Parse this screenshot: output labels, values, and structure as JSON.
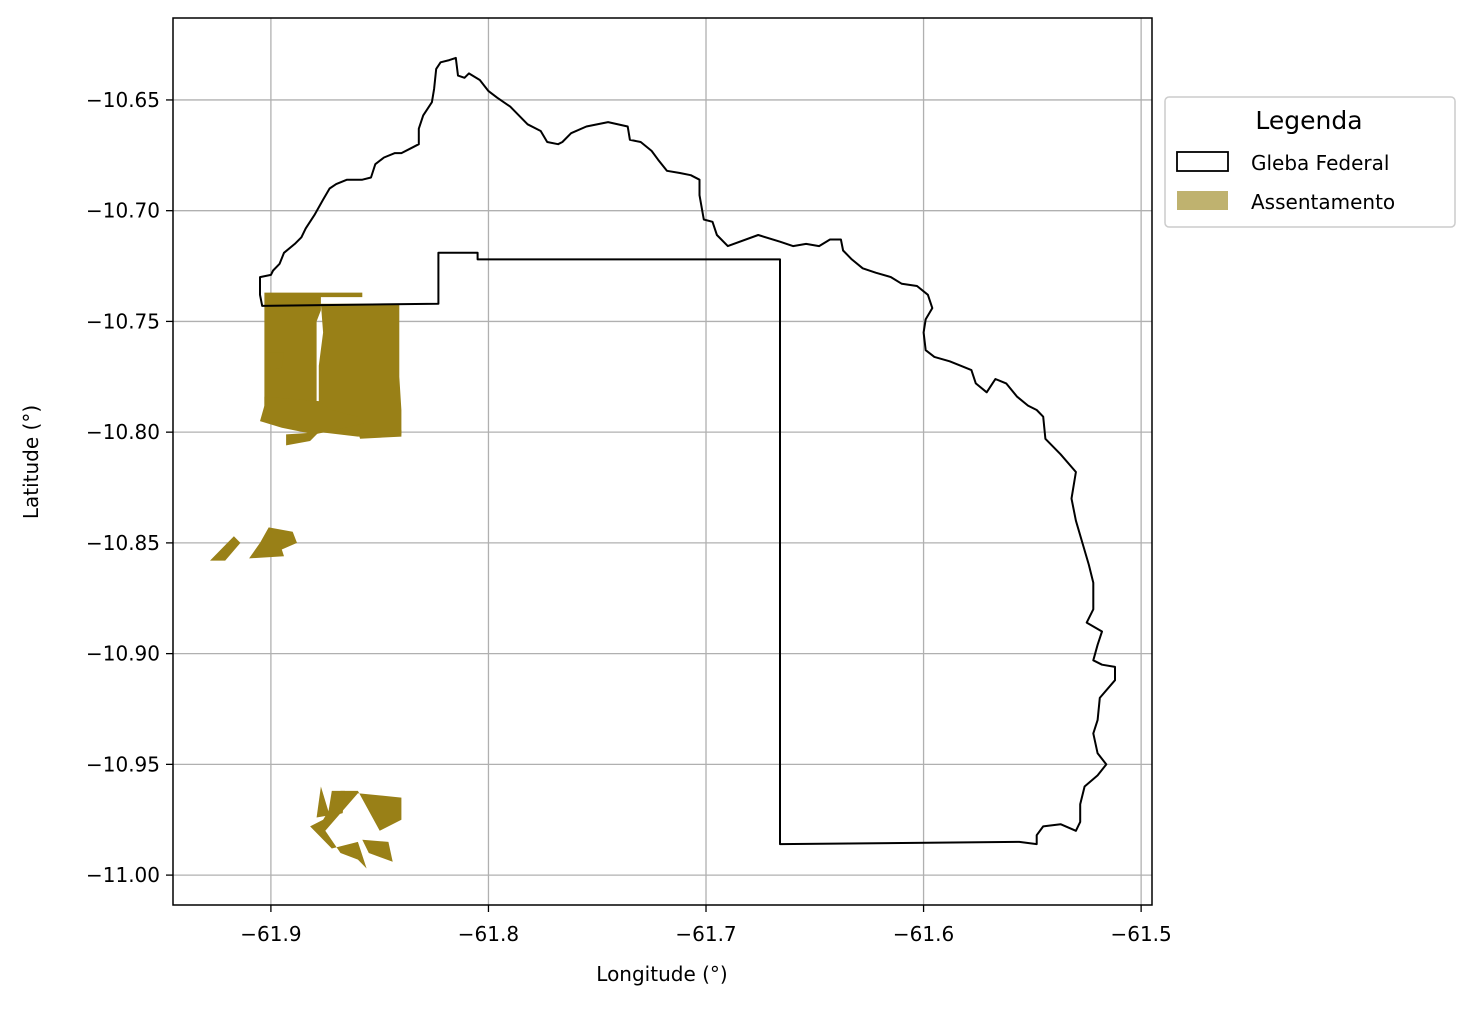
{
  "chart_data": {
    "type": "map",
    "title": "",
    "xlabel": "Longitude (°)",
    "ylabel": "Latitude (°)",
    "xlim": [
      -61.945,
      -61.495
    ],
    "ylim": [
      -11.0135,
      -10.613
    ],
    "grid": true,
    "x_ticks": [
      -61.9,
      -61.8,
      -61.7,
      -61.6,
      -61.5
    ],
    "x_tick_labels": [
      "−61.9",
      "−61.8",
      "−61.7",
      "−61.6",
      "−61.5"
    ],
    "y_ticks": [
      -10.65,
      -10.7,
      -10.75,
      -10.8,
      -10.85,
      -10.9,
      -10.95,
      -11.0
    ],
    "y_tick_labels": [
      "−10.65",
      "−10.70",
      "−10.75",
      "−10.80",
      "−10.85",
      "−10.90",
      "−10.95",
      "−11.00"
    ],
    "legend": {
      "title": "Legenda",
      "placement": "outside-right-top",
      "entries": [
        {
          "label": "Gleba Federal",
          "style": "outline",
          "edge_color": "#000000",
          "fill": "none"
        },
        {
          "label": "Assentamento",
          "style": "fill",
          "fill": "#bfb26f"
        }
      ]
    },
    "layers": [
      {
        "name": "Gleba Federal",
        "style": "outline",
        "color": "#000000",
        "polygons": [
          [
            [
              -61.904,
              -10.743
            ],
            [
              -61.823,
              -10.742
            ],
            [
              -61.823,
              -10.719
            ],
            [
              -61.805,
              -10.719
            ],
            [
              -61.805,
              -10.722
            ],
            [
              -61.666,
              -10.722
            ],
            [
              -61.666,
              -10.986
            ],
            [
              -61.556,
              -10.985
            ],
            [
              -61.548,
              -10.986
            ],
            [
              -61.548,
              -10.982
            ],
            [
              -61.545,
              -10.978
            ],
            [
              -61.537,
              -10.977
            ],
            [
              -61.53,
              -10.98
            ],
            [
              -61.528,
              -10.976
            ],
            [
              -61.528,
              -10.968
            ],
            [
              -61.526,
              -10.96
            ],
            [
              -61.52,
              -10.955
            ],
            [
              -61.516,
              -10.95
            ],
            [
              -61.52,
              -10.945
            ],
            [
              -61.522,
              -10.936
            ],
            [
              -61.52,
              -10.93
            ],
            [
              -61.519,
              -10.92
            ],
            [
              -61.512,
              -10.912
            ],
            [
              -61.512,
              -10.906
            ],
            [
              -61.518,
              -10.905
            ],
            [
              -61.522,
              -10.903
            ],
            [
              -61.52,
              -10.896
            ],
            [
              -61.518,
              -10.89
            ],
            [
              -61.525,
              -10.886
            ],
            [
              -61.522,
              -10.88
            ],
            [
              -61.522,
              -10.868
            ],
            [
              -61.524,
              -10.86
            ],
            [
              -61.527,
              -10.85
            ],
            [
              -61.53,
              -10.84
            ],
            [
              -61.532,
              -10.83
            ],
            [
              -61.53,
              -10.818
            ],
            [
              -61.537,
              -10.81
            ],
            [
              -61.544,
              -10.803
            ],
            [
              -61.545,
              -10.793
            ],
            [
              -61.548,
              -10.79
            ],
            [
              -61.552,
              -10.788
            ],
            [
              -61.557,
              -10.784
            ],
            [
              -61.562,
              -10.778
            ],
            [
              -61.567,
              -10.776
            ],
            [
              -61.571,
              -10.782
            ],
            [
              -61.576,
              -10.778
            ],
            [
              -61.578,
              -10.772
            ],
            [
              -61.583,
              -10.77
            ],
            [
              -61.588,
              -10.768
            ],
            [
              -61.595,
              -10.766
            ],
            [
              -61.599,
              -10.763
            ],
            [
              -61.6,
              -10.755
            ],
            [
              -61.599,
              -10.749
            ],
            [
              -61.596,
              -10.744
            ],
            [
              -61.598,
              -10.738
            ],
            [
              -61.603,
              -10.734
            ],
            [
              -61.61,
              -10.733
            ],
            [
              -61.615,
              -10.73
            ],
            [
              -61.622,
              -10.728
            ],
            [
              -61.628,
              -10.726
            ],
            [
              -61.633,
              -10.722
            ],
            [
              -61.637,
              -10.718
            ],
            [
              -61.638,
              -10.713
            ],
            [
              -61.643,
              -10.713
            ],
            [
              -61.648,
              -10.716
            ],
            [
              -61.654,
              -10.715
            ],
            [
              -61.66,
              -10.716
            ],
            [
              -61.666,
              -10.714
            ],
            [
              -61.676,
              -10.711
            ],
            [
              -61.69,
              -10.716
            ],
            [
              -61.695,
              -10.711
            ],
            [
              -61.697,
              -10.705
            ],
            [
              -61.701,
              -10.704
            ],
            [
              -61.703,
              -10.693
            ],
            [
              -61.703,
              -10.686
            ],
            [
              -61.707,
              -10.684
            ],
            [
              -61.712,
              -10.683
            ],
            [
              -61.718,
              -10.682
            ],
            [
              -61.722,
              -10.677
            ],
            [
              -61.725,
              -10.673
            ],
            [
              -61.73,
              -10.669
            ],
            [
              -61.735,
              -10.668
            ],
            [
              -61.736,
              -10.662
            ],
            [
              -61.745,
              -10.66
            ],
            [
              -61.755,
              -10.662
            ],
            [
              -61.762,
              -10.665
            ],
            [
              -61.766,
              -10.669
            ],
            [
              -61.768,
              -10.67
            ],
            [
              -61.773,
              -10.669
            ],
            [
              -61.776,
              -10.664
            ],
            [
              -61.782,
              -10.661
            ],
            [
              -61.786,
              -10.657
            ],
            [
              -61.79,
              -10.653
            ],
            [
              -61.796,
              -10.649
            ],
            [
              -61.8,
              -10.646
            ],
            [
              -61.804,
              -10.641
            ],
            [
              -61.809,
              -10.638
            ],
            [
              -61.811,
              -10.64
            ],
            [
              -61.814,
              -10.639
            ],
            [
              -61.815,
              -10.631
            ],
            [
              -61.818,
              -10.632
            ],
            [
              -61.822,
              -10.633
            ],
            [
              -61.824,
              -10.636
            ],
            [
              -61.825,
              -10.645
            ],
            [
              -61.826,
              -10.651
            ],
            [
              -61.83,
              -10.657
            ],
            [
              -61.832,
              -10.663
            ],
            [
              -61.832,
              -10.67
            ],
            [
              -61.836,
              -10.672
            ],
            [
              -61.84,
              -10.674
            ],
            [
              -61.843,
              -10.674
            ],
            [
              -61.848,
              -10.676
            ],
            [
              -61.852,
              -10.679
            ],
            [
              -61.854,
              -10.685
            ],
            [
              -61.858,
              -10.686
            ],
            [
              -61.865,
              -10.686
            ],
            [
              -61.87,
              -10.688
            ],
            [
              -61.873,
              -10.69
            ],
            [
              -61.876,
              -10.695
            ],
            [
              -61.88,
              -10.702
            ],
            [
              -61.884,
              -10.708
            ],
            [
              -61.886,
              -10.712
            ],
            [
              -61.889,
              -10.715
            ],
            [
              -61.894,
              -10.719
            ],
            [
              -61.896,
              -10.724
            ],
            [
              -61.899,
              -10.727
            ],
            [
              -61.9,
              -10.729
            ],
            [
              -61.905,
              -10.73
            ],
            [
              -61.905,
              -10.738
            ],
            [
              -61.904,
              -10.743
            ]
          ]
        ]
      },
      {
        "name": "Assentamento",
        "style": "fill",
        "color": "#998017",
        "polygons": [
          [
            [
              -61.903,
              -10.737
            ],
            [
              -61.858,
              -10.737
            ],
            [
              -61.858,
              -10.739
            ],
            [
              -61.877,
              -10.739
            ],
            [
              -61.877,
              -10.745
            ],
            [
              -61.879,
              -10.75
            ],
            [
              -61.879,
              -10.755
            ],
            [
              -61.879,
              -10.78
            ],
            [
              -61.879,
              -10.79
            ],
            [
              -61.885,
              -10.797
            ],
            [
              -61.903,
              -10.793
            ],
            [
              -61.903,
              -10.74
            ]
          ],
          [
            [
              -61.877,
              -10.742
            ],
            [
              -61.841,
              -10.742
            ],
            [
              -61.841,
              -10.76
            ],
            [
              -61.841,
              -10.775
            ],
            [
              -61.84,
              -10.79
            ],
            [
              -61.84,
              -10.801
            ],
            [
              -61.86,
              -10.802
            ],
            [
              -61.877,
              -10.8
            ],
            [
              -61.878,
              -10.79
            ],
            [
              -61.878,
              -10.77
            ],
            [
              -61.876,
              -10.755
            ]
          ],
          [
            [
              -61.903,
              -10.784
            ],
            [
              -61.878,
              -10.786
            ],
            [
              -61.872,
              -10.79
            ],
            [
              -61.86,
              -10.793
            ],
            [
              -61.857,
              -10.796
            ],
            [
              -61.87,
              -10.799
            ],
            [
              -61.88,
              -10.801
            ],
            [
              -61.895,
              -10.798
            ],
            [
              -61.905,
              -10.795
            ],
            [
              -61.903,
              -10.788
            ]
          ],
          [
            [
              -61.893,
              -10.801
            ],
            [
              -61.878,
              -10.8
            ],
            [
              -61.882,
              -10.804
            ],
            [
              -61.893,
              -10.806
            ]
          ],
          [
            [
              -61.86,
              -10.8
            ],
            [
              -61.84,
              -10.799
            ],
            [
              -61.84,
              -10.802
            ],
            [
              -61.859,
              -10.803
            ]
          ],
          [
            [
              -61.902,
              -10.764
            ],
            [
              -61.894,
              -10.764
            ],
            [
              -61.895,
              -10.771
            ],
            [
              -61.9,
              -10.772
            ]
          ],
          [
            [
              -61.901,
              -10.843
            ],
            [
              -61.89,
              -10.845
            ],
            [
              -61.888,
              -10.85
            ],
            [
              -61.895,
              -10.853
            ],
            [
              -61.894,
              -10.856
            ],
            [
              -61.91,
              -10.857
            ],
            [
              -61.905,
              -10.85
            ]
          ],
          [
            [
              -61.917,
              -10.847
            ],
            [
              -61.928,
              -10.858
            ],
            [
              -61.921,
              -10.858
            ],
            [
              -61.914,
              -10.85
            ]
          ],
          [
            [
              -61.868,
              -10.962
            ],
            [
              -61.86,
              -10.962
            ],
            [
              -61.85,
              -10.98
            ],
            [
              -61.84,
              -10.975
            ],
            [
              -61.84,
              -10.965
            ],
            [
              -61.86,
              -10.963
            ],
            [
              -61.875,
              -10.98
            ],
            [
              -61.868,
              -10.99
            ],
            [
              -61.86,
              -10.993
            ],
            [
              -61.856,
              -10.997
            ],
            [
              -61.86,
              -10.985
            ],
            [
              -61.872,
              -10.988
            ],
            [
              -61.882,
              -10.978
            ],
            [
              -61.876,
              -10.975
            ]
          ],
          [
            [
              -61.872,
              -10.962
            ],
            [
              -61.866,
              -10.962
            ],
            [
              -61.867,
              -10.972
            ],
            [
              -61.874,
              -10.974
            ]
          ],
          [
            [
              -61.858,
              -10.984
            ],
            [
              -61.846,
              -10.985
            ],
            [
              -61.844,
              -10.994
            ],
            [
              -61.855,
              -10.99
            ]
          ],
          [
            [
              -61.877,
              -10.96
            ],
            [
              -61.873,
              -10.973
            ],
            [
              -61.879,
              -10.974
            ]
          ]
        ]
      }
    ]
  }
}
